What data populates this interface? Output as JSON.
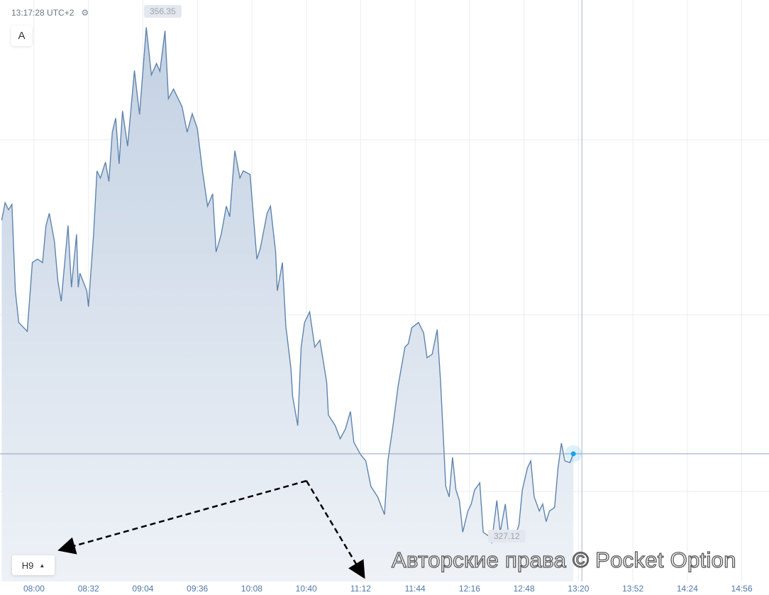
{
  "header": {
    "clock": "13:17:28 UTC+2",
    "settings_icon": "gear-icon"
  },
  "toolbar": {
    "drawing_button": "A",
    "timeframe_button": "H9",
    "timeframe_icon": "caret-up-icon"
  },
  "watermark": "Авторские права © Pocket Option",
  "colors": {
    "line": "#5f84ad",
    "fill": "#c9d6e6",
    "current_dot": "#1aa3e8",
    "axis_text": "#4f79a8",
    "grid": "#e9edf1"
  },
  "chart_data": {
    "type": "area",
    "xlabel": "",
    "ylabel": "",
    "grid": true,
    "xlim": [
      "07:40",
      "15:12"
    ],
    "ylim": [
      324.9,
      357.9
    ],
    "x_ticks": [
      "08:00",
      "08:32",
      "09:04",
      "09:36",
      "10:08",
      "10:40",
      "11:12",
      "11:44",
      "12:16",
      "12:48",
      "13:20",
      "13:52",
      "14:24",
      "14:56"
    ],
    "max_label": "356.35",
    "min_label": "327.12",
    "current_price_line": 332.15,
    "vertical_marker_time": "13:22",
    "points": [
      [
        "07:41",
        345.4
      ],
      [
        "07:43",
        346.4
      ],
      [
        "07:45",
        346.0
      ],
      [
        "07:47",
        346.3
      ],
      [
        "07:49",
        341.4
      ],
      [
        "07:51",
        339.6
      ],
      [
        "07:54",
        339.3
      ],
      [
        "07:56",
        339.1
      ],
      [
        "07:59",
        343.0
      ],
      [
        "08:02",
        343.2
      ],
      [
        "08:05",
        343.0
      ],
      [
        "08:07",
        345.1
      ],
      [
        "08:09",
        345.8
      ],
      [
        "08:12",
        344.2
      ],
      [
        "08:14",
        342.0
      ],
      [
        "08:16",
        340.8
      ],
      [
        "08:20",
        345.1
      ],
      [
        "08:22",
        341.6
      ],
      [
        "08:25",
        344.6
      ],
      [
        "08:26",
        341.6
      ],
      [
        "08:27",
        342.4
      ],
      [
        "08:31",
        341.4
      ],
      [
        "08:32",
        340.5
      ],
      [
        "08:35",
        344.6
      ],
      [
        "08:37",
        348.2
      ],
      [
        "08:39",
        347.8
      ],
      [
        "08:42",
        348.7
      ],
      [
        "08:44",
        347.6
      ],
      [
        "08:46",
        350.4
      ],
      [
        "08:48",
        351.2
      ],
      [
        "08:50",
        348.6
      ],
      [
        "08:52",
        351.6
      ],
      [
        "08:55",
        349.6
      ],
      [
        "08:59",
        353.9
      ],
      [
        "09:02",
        351.4
      ],
      [
        "09:03",
        352.65
      ],
      [
        "09:06",
        356.35
      ],
      [
        "09:09",
        353.65
      ],
      [
        "09:12",
        354.3
      ],
      [
        "09:14",
        353.85
      ],
      [
        "09:17",
        356.15
      ],
      [
        "09:19",
        352.3
      ],
      [
        "09:22",
        352.85
      ],
      [
        "09:25",
        352.25
      ],
      [
        "09:27",
        351.85
      ],
      [
        "09:30",
        350.4
      ],
      [
        "09:33",
        351.45
      ],
      [
        "09:36",
        350.6
      ],
      [
        "09:39",
        348.2
      ],
      [
        "09:42",
        346.2
      ],
      [
        "09:45",
        346.9
      ],
      [
        "09:47",
        343.6
      ],
      [
        "09:50",
        344.6
      ],
      [
        "09:53",
        346.2
      ],
      [
        "09:55",
        345.6
      ],
      [
        "09:58",
        349.35
      ],
      [
        "10:01",
        347.8
      ],
      [
        "10:03",
        348.2
      ],
      [
        "10:07",
        348.0
      ],
      [
        "10:11",
        343.2
      ],
      [
        "10:13",
        343.8
      ],
      [
        "10:17",
        345.8
      ],
      [
        "10:19",
        346.2
      ],
      [
        "10:22",
        343.6
      ],
      [
        "10:23",
        341.4
      ],
      [
        "10:26",
        343.0
      ],
      [
        "10:28",
        339.4
      ],
      [
        "10:31",
        337.0
      ],
      [
        "10:32",
        335.4
      ],
      [
        "10:35",
        333.75
      ],
      [
        "10:37",
        338.2
      ],
      [
        "10:39",
        339.6
      ],
      [
        "10:42",
        340.2
      ],
      [
        "10:45",
        338.2
      ],
      [
        "10:48",
        338.6
      ],
      [
        "10:52",
        336.2
      ],
      [
        "10:53",
        334.35
      ],
      [
        "10:57",
        333.75
      ],
      [
        "11:00",
        333.0
      ],
      [
        "11:03",
        333.55
      ],
      [
        "11:06",
        334.55
      ],
      [
        "11:08",
        332.8
      ],
      [
        "11:12",
        332.1
      ],
      [
        "11:15",
        331.75
      ],
      [
        "11:18",
        330.3
      ],
      [
        "11:22",
        329.7
      ],
      [
        "11:26",
        328.7
      ],
      [
        "11:28",
        331.75
      ],
      [
        "11:31",
        333.75
      ],
      [
        "11:34",
        336.0
      ],
      [
        "11:38",
        338.2
      ],
      [
        "11:40",
        338.4
      ],
      [
        "11:42",
        339.3
      ],
      [
        "11:46",
        339.6
      ],
      [
        "11:49",
        339.0
      ],
      [
        "11:51",
        337.6
      ],
      [
        "11:54",
        337.8
      ],
      [
        "11:57",
        339.2
      ],
      [
        "11:59",
        336.2
      ],
      [
        "12:02",
        330.3
      ],
      [
        "12:04",
        329.7
      ],
      [
        "12:06",
        331.95
      ],
      [
        "12:08",
        330.1
      ],
      [
        "12:10",
        329.5
      ],
      [
        "12:12",
        327.7
      ],
      [
        "12:15",
        328.9
      ],
      [
        "12:17",
        329.3
      ],
      [
        "12:19",
        330.1
      ],
      [
        "12:22",
        330.5
      ],
      [
        "12:24",
        327.7
      ],
      [
        "12:27",
        327.5
      ],
      [
        "12:29",
        327.12
      ],
      [
        "12:32",
        329.5
      ],
      [
        "12:34",
        327.7
      ],
      [
        "12:37",
        329.3
      ],
      [
        "12:39",
        327.5
      ],
      [
        "12:42",
        327.3
      ],
      [
        "12:45",
        328.1
      ],
      [
        "12:47",
        330.1
      ],
      [
        "12:50",
        331.35
      ],
      [
        "12:52",
        331.75
      ],
      [
        "12:54",
        329.7
      ],
      [
        "12:57",
        328.9
      ],
      [
        "12:59",
        329.3
      ],
      [
        "13:01",
        328.3
      ],
      [
        "13:03",
        328.9
      ],
      [
        "13:06",
        329.1
      ],
      [
        "13:08",
        331.35
      ],
      [
        "13:10",
        332.75
      ],
      [
        "13:12",
        331.75
      ],
      [
        "13:15",
        331.65
      ],
      [
        "13:17",
        332.15
      ]
    ]
  }
}
